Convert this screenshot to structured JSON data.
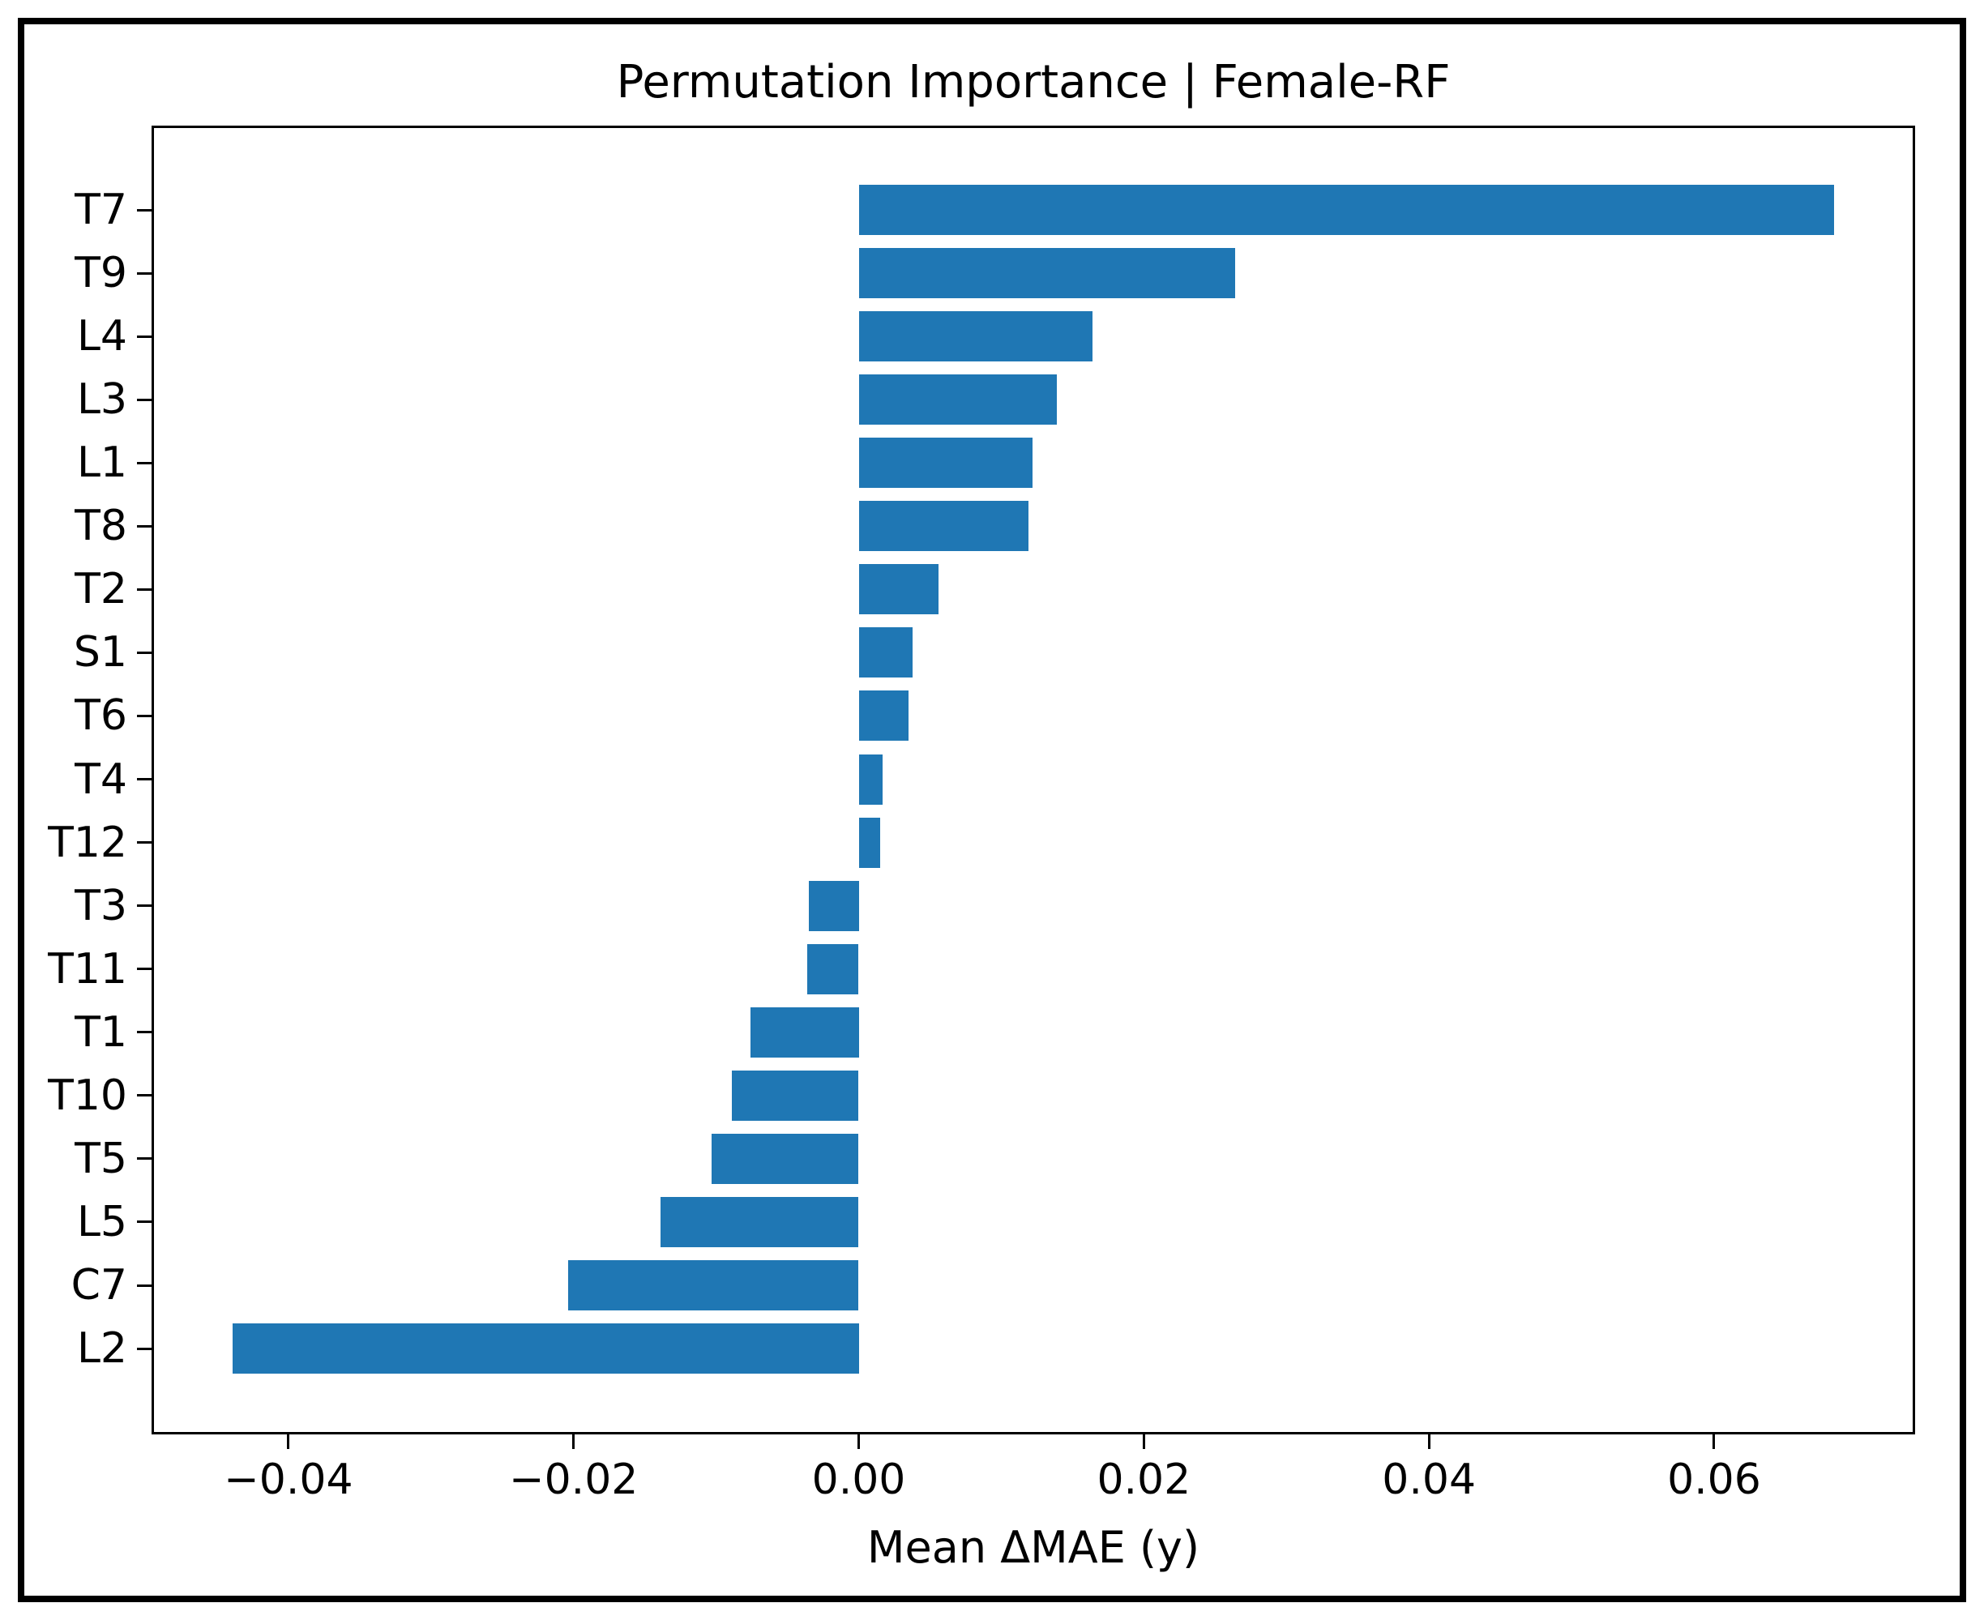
{
  "figure": {
    "background": "#ffffff",
    "frame_color": "#000000"
  },
  "chart_data": {
    "type": "bar",
    "orientation": "horizontal",
    "title": "Permutation Importance | Female-RF",
    "xlabel": "Mean ΔMAE (y)",
    "ylabel": "",
    "categories": [
      "T7",
      "T9",
      "L4",
      "L3",
      "L1",
      "T8",
      "T2",
      "S1",
      "T6",
      "T4",
      "T12",
      "T3",
      "T11",
      "T1",
      "T10",
      "T5",
      "L5",
      "C7",
      "L2"
    ],
    "values": [
      0.0684,
      0.0264,
      0.0164,
      0.0139,
      0.0122,
      0.0119,
      0.0056,
      0.0038,
      0.0035,
      0.0017,
      0.0015,
      -0.0035,
      -0.0036,
      -0.0076,
      -0.0089,
      -0.0103,
      -0.0139,
      -0.0204,
      -0.0439
    ],
    "xlim": [
      -0.0496,
      0.0741
    ],
    "xticks": {
      "values": [
        -0.04,
        -0.02,
        0.0,
        0.02,
        0.04,
        0.06
      ],
      "labels": [
        "−0.04",
        "−0.02",
        "0.00",
        "0.02",
        "0.04",
        "0.06"
      ]
    },
    "bar_color": "#1f77b4",
    "axis_color": "#000000",
    "grid": false,
    "legend": null
  }
}
